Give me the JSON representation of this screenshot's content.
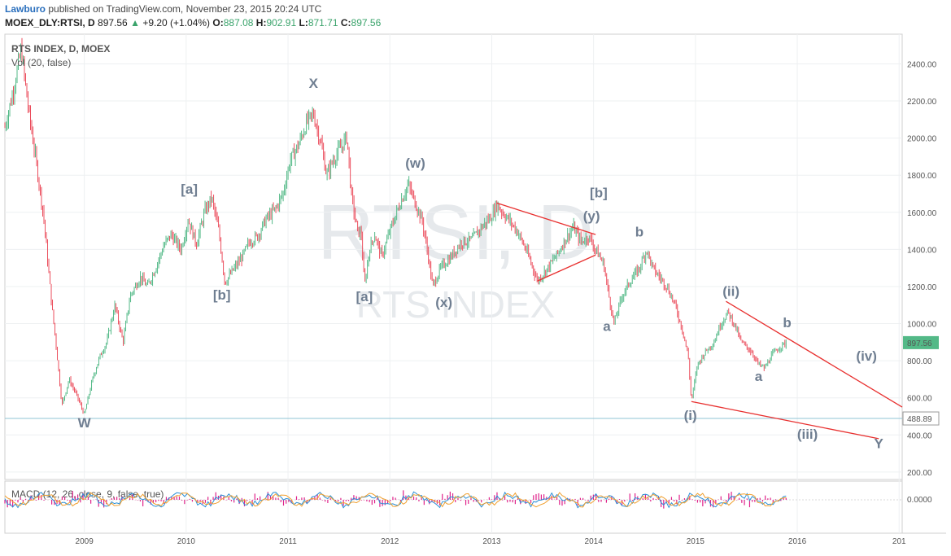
{
  "header": {
    "author": "Lawburo",
    "published_text": "published on TradingView.com, November 23, 2015 20:24 UTC",
    "symbol": "MOEX_DLY:RTSI, D",
    "last": "897.56",
    "arrow": "▲",
    "change": "+9.20 (+1.04%)",
    "open_label": "O:",
    "open": "887.08",
    "high_label": "H:",
    "high": "902.91",
    "low_label": "L:",
    "low": "871.71",
    "close_label": "C:",
    "close": "897.56"
  },
  "chart_data": {
    "type": "candlestick",
    "title": "RTS INDEX, D, MOEX",
    "volume_label": "Vol (20, false)",
    "watermark_main": "RTSI, D",
    "watermark_sub": "RTS INDEX",
    "x_ticks": [
      "2009",
      "2010",
      "2011",
      "2012",
      "2013",
      "2014",
      "2015",
      "2016",
      "201"
    ],
    "y_ticks": [
      200,
      400,
      600,
      800,
      1000,
      1200,
      1400,
      1600,
      1800,
      2000,
      2200,
      2400
    ],
    "ylim": [
      160,
      2560
    ],
    "xlim": [
      2008.22,
      2017.03
    ],
    "last_price_label": "897.56",
    "horizontal_line_label": "488.89",
    "horizontal_line_value": 488.89,
    "colors": {
      "up": "#53b987",
      "down": "#eb4d5c",
      "last_price_bg": "#53b987",
      "hline_bg": "#ffffff",
      "hline": "#8fc4d6",
      "trendline": "#e8302f",
      "wave": "#6f7e91"
    },
    "price_path": [
      [
        2008.22,
        2060
      ],
      [
        2008.3,
        2250
      ],
      [
        2008.38,
        2480
      ],
      [
        2008.45,
        2160
      ],
      [
        2008.52,
        1900
      ],
      [
        2008.6,
        1580
      ],
      [
        2008.68,
        1100
      ],
      [
        2008.72,
        900
      ],
      [
        2008.78,
        560
      ],
      [
        2008.85,
        700
      ],
      [
        2008.92,
        620
      ],
      [
        2009.0,
        510
      ],
      [
        2009.08,
        700
      ],
      [
        2009.15,
        820
      ],
      [
        2009.22,
        900
      ],
      [
        2009.3,
        1100
      ],
      [
        2009.38,
        900
      ],
      [
        2009.45,
        1150
      ],
      [
        2009.55,
        1250
      ],
      [
        2009.62,
        1200
      ],
      [
        2009.7,
        1300
      ],
      [
        2009.78,
        1420
      ],
      [
        2009.85,
        1480
      ],
      [
        2009.95,
        1400
      ],
      [
        2010.02,
        1560
      ],
      [
        2010.1,
        1430
      ],
      [
        2010.18,
        1600
      ],
      [
        2010.25,
        1680
      ],
      [
        2010.32,
        1500
      ],
      [
        2010.38,
        1220
      ],
      [
        2010.45,
        1280
      ],
      [
        2010.55,
        1360
      ],
      [
        2010.62,
        1440
      ],
      [
        2010.7,
        1470
      ],
      [
        2010.78,
        1560
      ],
      [
        2010.88,
        1620
      ],
      [
        2010.95,
        1700
      ],
      [
        2011.02,
        1880
      ],
      [
        2011.1,
        1960
      ],
      [
        2011.18,
        2080
      ],
      [
        2011.25,
        2130
      ],
      [
        2011.32,
        1980
      ],
      [
        2011.38,
        1800
      ],
      [
        2011.45,
        1890
      ],
      [
        2011.52,
        1950
      ],
      [
        2011.58,
        2010
      ],
      [
        2011.62,
        1700
      ],
      [
        2011.68,
        1500
      ],
      [
        2011.72,
        1480
      ],
      [
        2011.75,
        1200
      ],
      [
        2011.8,
        1400
      ],
      [
        2011.85,
        1480
      ],
      [
        2011.92,
        1360
      ],
      [
        2012.0,
        1500
      ],
      [
        2012.1,
        1650
      ],
      [
        2012.18,
        1750
      ],
      [
        2012.25,
        1650
      ],
      [
        2012.32,
        1550
      ],
      [
        2012.38,
        1350
      ],
      [
        2012.42,
        1200
      ],
      [
        2012.5,
        1300
      ],
      [
        2012.6,
        1360
      ],
      [
        2012.7,
        1440
      ],
      [
        2012.8,
        1450
      ],
      [
        2012.9,
        1520
      ],
      [
        2013.0,
        1580
      ],
      [
        2013.05,
        1640
      ],
      [
        2013.15,
        1570
      ],
      [
        2013.25,
        1500
      ],
      [
        2013.35,
        1380
      ],
      [
        2013.45,
        1230
      ],
      [
        2013.55,
        1300
      ],
      [
        2013.65,
        1380
      ],
      [
        2013.72,
        1450
      ],
      [
        2013.8,
        1520
      ],
      [
        2013.88,
        1440
      ],
      [
        2013.95,
        1470
      ],
      [
        2014.02,
        1400
      ],
      [
        2014.1,
        1320
      ],
      [
        2014.15,
        1150
      ],
      [
        2014.2,
        1000
      ],
      [
        2014.28,
        1150
      ],
      [
        2014.35,
        1220
      ],
      [
        2014.45,
        1300
      ],
      [
        2014.52,
        1400
      ],
      [
        2014.58,
        1300
      ],
      [
        2014.65,
        1250
      ],
      [
        2014.72,
        1200
      ],
      [
        2014.8,
        1100
      ],
      [
        2014.88,
        950
      ],
      [
        2014.93,
        820
      ],
      [
        2014.96,
        580
      ],
      [
        2015.02,
        780
      ],
      [
        2015.1,
        850
      ],
      [
        2015.18,
        900
      ],
      [
        2015.25,
        1000
      ],
      [
        2015.32,
        1060
      ],
      [
        2015.38,
        1000
      ],
      [
        2015.45,
        900
      ],
      [
        2015.55,
        850
      ],
      [
        2015.62,
        780
      ],
      [
        2015.68,
        760
      ],
      [
        2015.75,
        830
      ],
      [
        2015.82,
        870
      ],
      [
        2015.89,
        897.56
      ]
    ],
    "trendlines": [
      {
        "from": [
          2013.05,
          1650
        ],
        "to": [
          2014.02,
          1480
        ]
      },
      {
        "from": [
          2013.45,
          1230
        ],
        "to": [
          2014.02,
          1370
        ]
      },
      {
        "from": [
          2015.3,
          1120
        ],
        "to": [
          2017.03,
          550
        ]
      },
      {
        "from": [
          2014.96,
          580
        ],
        "to": [
          2016.8,
          380
        ]
      }
    ],
    "wave_labels": [
      {
        "text": "W",
        "x": 2009.0,
        "y": 440
      },
      {
        "text": "[a]",
        "x": 2010.03,
        "y": 1700
      },
      {
        "text": "[b]",
        "x": 2010.35,
        "y": 1130
      },
      {
        "text": "X",
        "x": 2011.25,
        "y": 2270
      },
      {
        "text": "[a]",
        "x": 2011.75,
        "y": 1120
      },
      {
        "text": "(w)",
        "x": 2012.25,
        "y": 1840
      },
      {
        "text": "(x)",
        "x": 2012.53,
        "y": 1090
      },
      {
        "text": "[b]",
        "x": 2014.05,
        "y": 1680
      },
      {
        "text": "(y)",
        "x": 2013.98,
        "y": 1555
      },
      {
        "text": "b",
        "x": 2014.45,
        "y": 1470
      },
      {
        "text": "a",
        "x": 2014.13,
        "y": 960
      },
      {
        "text": "(ii)",
        "x": 2015.35,
        "y": 1150
      },
      {
        "text": "b",
        "x": 2015.9,
        "y": 980
      },
      {
        "text": "(iv)",
        "x": 2016.68,
        "y": 800
      },
      {
        "text": "a",
        "x": 2015.62,
        "y": 690
      },
      {
        "text": "(i)",
        "x": 2014.95,
        "y": 480
      },
      {
        "text": "(iii)",
        "x": 2016.1,
        "y": 380
      },
      {
        "text": "Y",
        "x": 2016.8,
        "y": 330
      }
    ],
    "macd": {
      "label": "MACD (12, 26, close, 9, false, true)",
      "y_tick": "0.0000"
    }
  }
}
